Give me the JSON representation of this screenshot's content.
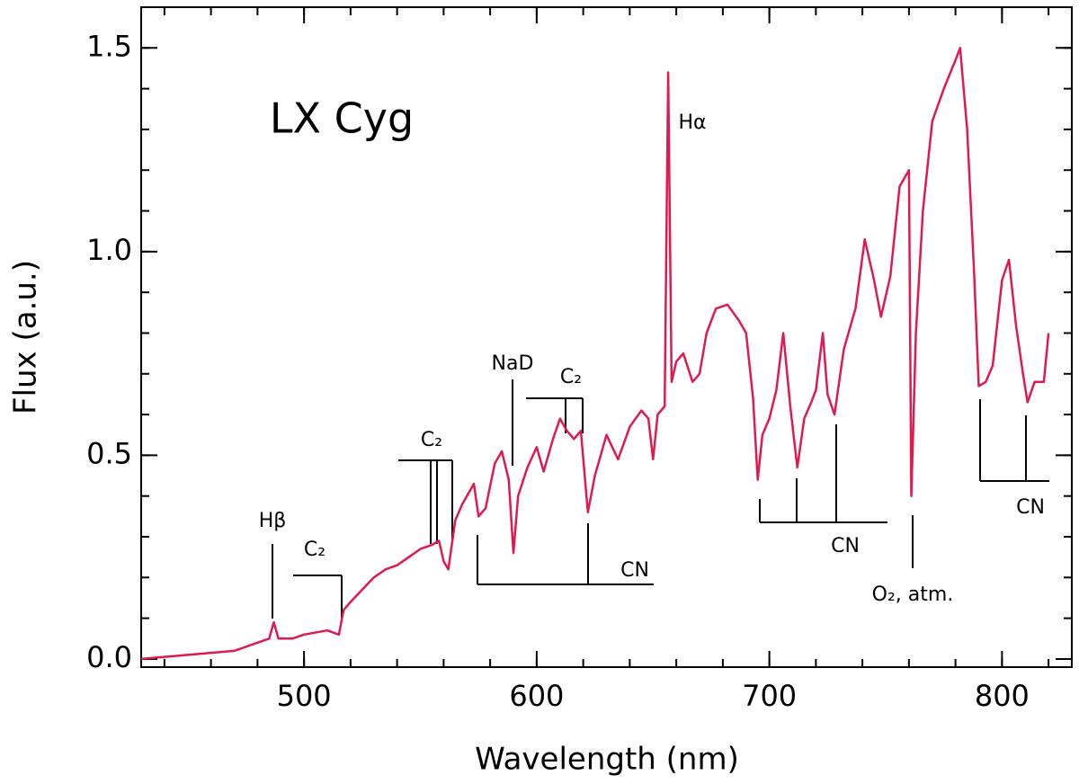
{
  "chart_data": {
    "type": "line",
    "xlabel": "Wavelength (nm)",
    "ylabel": "Flux (a.u.)",
    "color": "#e0194f",
    "xlim": [
      430,
      830
    ],
    "ylim": [
      -0.02,
      1.6
    ],
    "xticks": [
      500,
      600,
      700,
      800
    ],
    "yticks": [
      {
        "value": 0,
        "label": "0.0"
      },
      0.5,
      {
        "value": 1,
        "label": "1.0"
      },
      1.5
    ],
    "x": [
      430,
      450,
      470,
      480,
      485,
      487,
      489,
      495,
      500,
      510,
      515,
      517,
      520,
      525,
      530,
      535,
      540,
      545,
      550,
      555,
      558,
      560,
      562,
      565,
      568,
      571,
      573,
      575,
      578,
      582,
      585,
      588,
      590,
      592,
      596,
      600,
      603,
      607,
      610,
      613,
      616,
      619,
      622,
      625,
      630,
      635,
      640,
      645,
      648,
      650,
      652,
      655,
      656.5,
      658,
      660,
      663,
      667,
      670,
      673,
      677,
      682,
      687,
      690,
      693,
      695,
      697,
      700,
      703,
      706,
      709,
      712,
      715,
      718,
      720,
      723,
      725,
      728,
      732,
      737,
      741,
      745,
      748,
      752,
      756,
      760,
      761,
      763,
      766,
      770,
      775,
      780,
      782,
      785,
      788,
      790,
      793,
      796,
      800,
      803,
      806,
      809,
      811,
      814,
      818,
      820
    ],
    "values": [
      0.0,
      0.01,
      0.02,
      0.04,
      0.05,
      0.09,
      0.05,
      0.05,
      0.06,
      0.07,
      0.06,
      0.12,
      0.14,
      0.17,
      0.2,
      0.22,
      0.23,
      0.25,
      0.27,
      0.28,
      0.29,
      0.24,
      0.22,
      0.34,
      0.38,
      0.41,
      0.43,
      0.35,
      0.37,
      0.48,
      0.51,
      0.44,
      0.26,
      0.4,
      0.47,
      0.52,
      0.46,
      0.54,
      0.59,
      0.56,
      0.54,
      0.56,
      0.36,
      0.45,
      0.55,
      0.49,
      0.57,
      0.61,
      0.59,
      0.49,
      0.6,
      0.62,
      1.44,
      0.68,
      0.73,
      0.75,
      0.68,
      0.7,
      0.8,
      0.86,
      0.87,
      0.83,
      0.8,
      0.64,
      0.44,
      0.55,
      0.59,
      0.66,
      0.8,
      0.62,
      0.47,
      0.59,
      0.63,
      0.66,
      0.8,
      0.65,
      0.6,
      0.76,
      0.86,
      1.03,
      0.93,
      0.84,
      0.94,
      1.16,
      1.2,
      0.4,
      0.8,
      1.1,
      1.32,
      1.4,
      1.47,
      1.5,
      1.3,
      0.95,
      0.67,
      0.68,
      0.72,
      0.93,
      0.98,
      0.82,
      0.7,
      0.63,
      0.68,
      0.68,
      0.8
    ],
    "annotations": [
      "LX Cyg",
      "Hα",
      "Hβ",
      "C₂",
      "C₂",
      "NaD",
      "C₂",
      "CN",
      "CN",
      "O₂, atm.",
      "CN"
    ]
  }
}
